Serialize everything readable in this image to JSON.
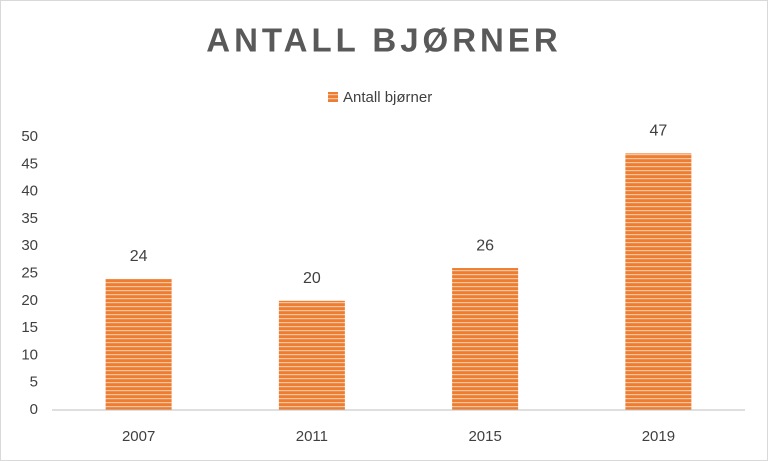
{
  "chart_data": {
    "type": "bar",
    "title": "ANTALL BJØRNER",
    "categories": [
      "2007",
      "2011",
      "2015",
      "2019"
    ],
    "series": [
      {
        "name": "Antall bjørner",
        "color": "#ed7d31",
        "values": [
          24,
          20,
          26,
          47
        ]
      }
    ],
    "ylim": [
      0,
      50
    ],
    "yticks": [
      0,
      5,
      10,
      15,
      20,
      25,
      30,
      35,
      40,
      45,
      50
    ],
    "grid": false,
    "data_labels": true,
    "legend": "top"
  }
}
